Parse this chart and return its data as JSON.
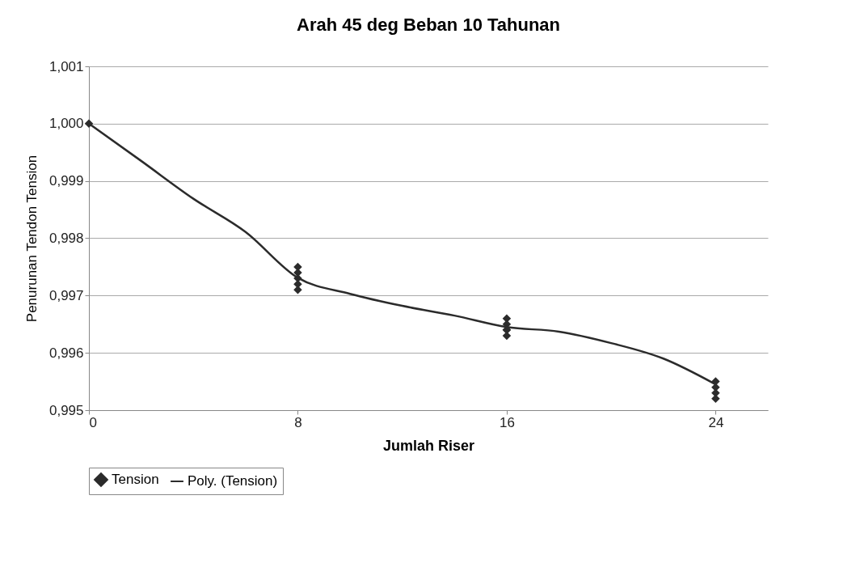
{
  "chart_data": {
    "type": "scatter",
    "title": "Arah 45 deg Beban 10 Tahunan",
    "xlabel": "Jumlah Riser",
    "ylabel": "Penurunan Tendon Tension",
    "xlim": [
      0,
      26
    ],
    "xticks": [
      0,
      8,
      16,
      24
    ],
    "ylim": [
      0.995,
      1.001
    ],
    "yticks": [
      {
        "value": 0.995,
        "label": "0,995"
      },
      {
        "value": 0.996,
        "label": "0,996"
      },
      {
        "value": 0.997,
        "label": "0,997"
      },
      {
        "value": 0.998,
        "label": "0,998"
      },
      {
        "value": 0.999,
        "label": "0,999"
      },
      {
        "value": 1.0,
        "label": "1,000"
      },
      {
        "value": 1.001,
        "label": "1,001"
      }
    ],
    "grid": "y",
    "legend": "bottom",
    "series": [
      {
        "name": "Tension",
        "marker": "diamond",
        "color": "#2b2b2b",
        "x": [
          0,
          8,
          8,
          8,
          8,
          8,
          16,
          16,
          16,
          16,
          16,
          24,
          24,
          24,
          24
        ],
        "values": [
          1.0,
          0.9975,
          0.9974,
          0.9973,
          0.9972,
          0.9971,
          0.9966,
          0.9965,
          0.9964,
          0.9964,
          0.9963,
          0.9955,
          0.9954,
          0.9953,
          0.9952
        ]
      },
      {
        "name": "Poly. (Tension)",
        "type": "line",
        "line_style": "solid",
        "color": "#2b2b2b",
        "x": [
          0,
          2,
          4,
          6,
          8,
          10,
          12,
          14,
          16,
          18,
          20,
          22,
          24
        ],
        "values": [
          1.0,
          0.99935,
          0.99869,
          0.99811,
          0.99731,
          0.99703,
          0.99682,
          0.99665,
          0.99645,
          0.99637,
          0.99617,
          0.9959,
          0.99545
        ]
      }
    ]
  }
}
